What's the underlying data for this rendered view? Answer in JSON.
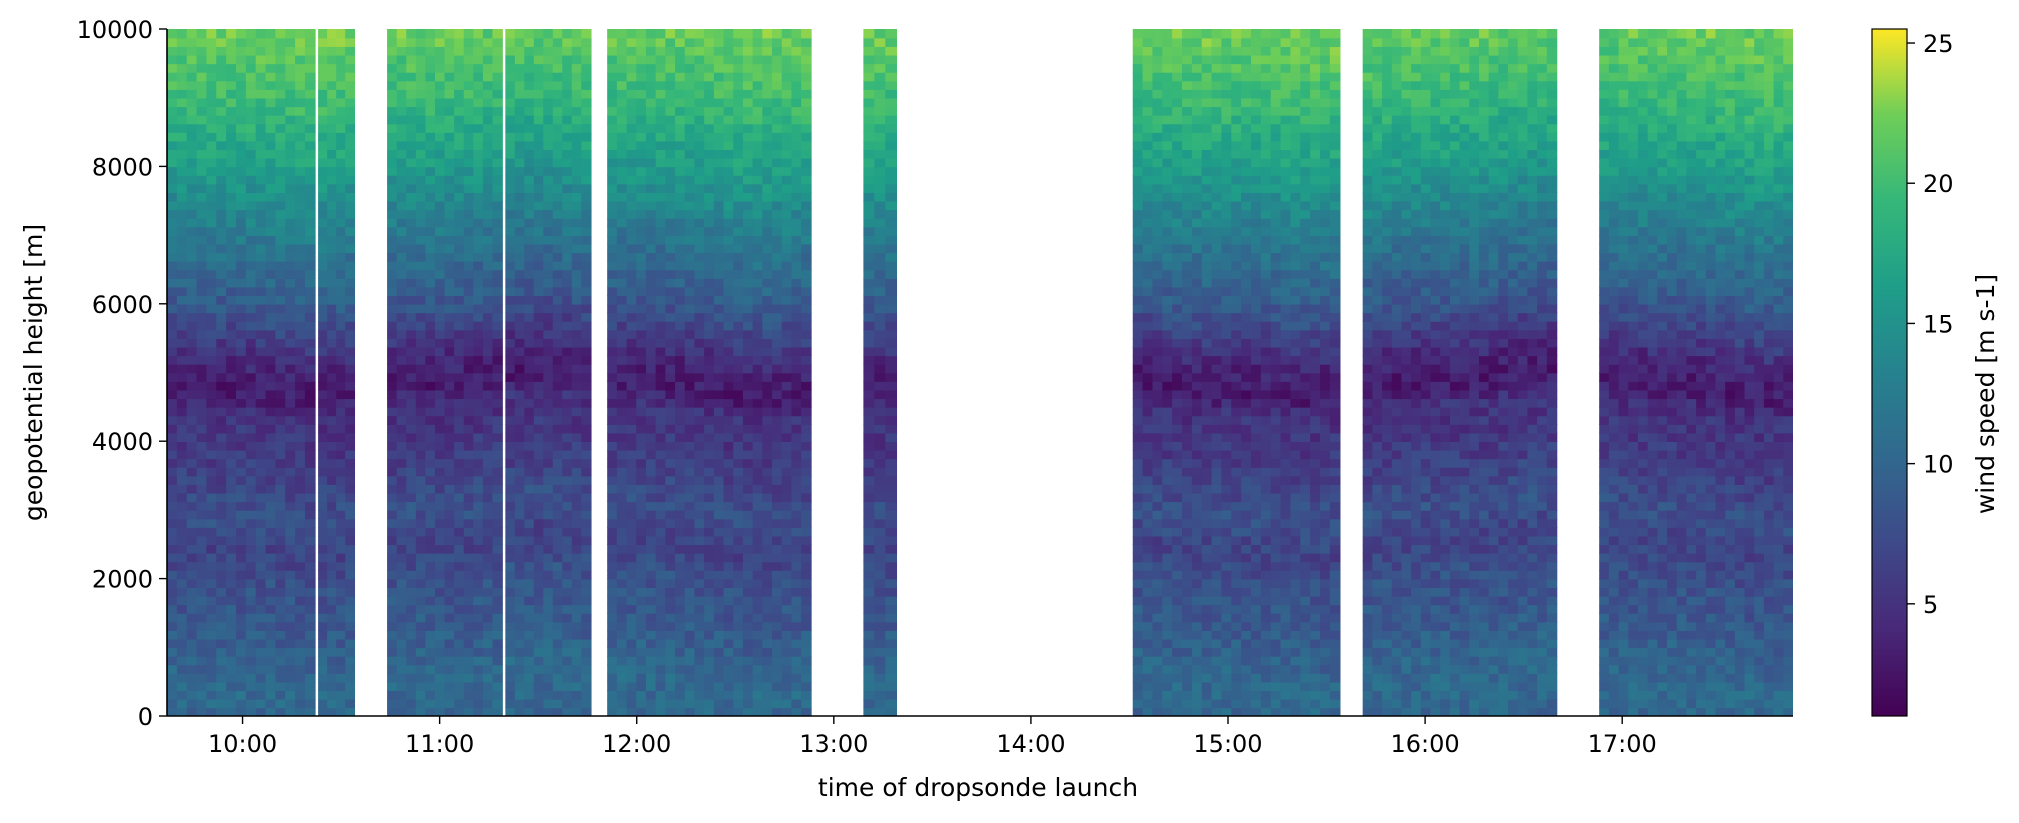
{
  "chart_data": {
    "type": "heatmap",
    "xlabel": "time of dropsonde launch",
    "ylabel": "geopotential height [m]",
    "colorbar_label": "wind speed [m s-1]",
    "colormap": "viridis",
    "x_ticks": [
      "10:00",
      "11:00",
      "12:00",
      "13:00",
      "14:00",
      "15:00",
      "16:00",
      "17:00"
    ],
    "xlim": [
      "09:37",
      "17:52"
    ],
    "y_ticks": [
      0,
      2000,
      4000,
      6000,
      8000,
      10000
    ],
    "ylim": [
      0,
      10000
    ],
    "colorbar_ticks": [
      5,
      10,
      15,
      20,
      25
    ],
    "colorbar_range": [
      1,
      25.5
    ],
    "data_blocks": [
      {
        "start": "09:37",
        "end": "10:22"
      },
      {
        "start": "10:23",
        "end": "10:34"
      },
      {
        "start": "10:44",
        "end": "11:19"
      },
      {
        "start": "11:20",
        "end": "11:46"
      },
      {
        "start": "11:51",
        "end": "12:53"
      },
      {
        "start": "13:09",
        "end": "13:19"
      },
      {
        "start": "14:31",
        "end": "15:34"
      },
      {
        "start": "15:41",
        "end": "16:40"
      },
      {
        "start": "16:53",
        "end": "17:52"
      }
    ],
    "wind_speed_profile": [
      {
        "height": 0,
        "speed": 10
      },
      {
        "height": 500,
        "speed": 10.5
      },
      {
        "height": 1000,
        "speed": 9.5
      },
      {
        "height": 1500,
        "speed": 8.5
      },
      {
        "height": 2000,
        "speed": 8
      },
      {
        "height": 2500,
        "speed": 6.5
      },
      {
        "height": 3000,
        "speed": 8
      },
      {
        "height": 3500,
        "speed": 6.5
      },
      {
        "height": 4000,
        "speed": 5.5
      },
      {
        "height": 4500,
        "speed": 5
      },
      {
        "height": 4800,
        "speed": 3
      },
      {
        "height": 5200,
        "speed": 4
      },
      {
        "height": 6000,
        "speed": 8.5
      },
      {
        "height": 7000,
        "speed": 12
      },
      {
        "height": 8000,
        "speed": 16
      },
      {
        "height": 9000,
        "speed": 19.5
      },
      {
        "height": 10000,
        "speed": 22
      }
    ]
  }
}
